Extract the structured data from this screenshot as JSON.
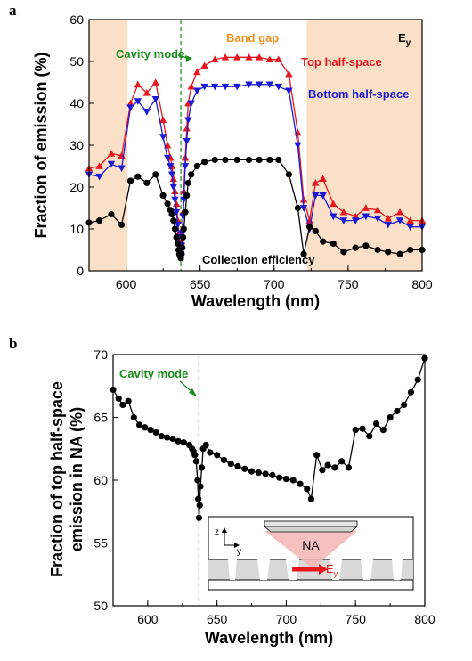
{
  "chart_data": [
    {
      "panel": "a",
      "type": "line",
      "xlabel": "Wavelength (nm)",
      "ylabel": "Fraction of emission (%)",
      "xlim": [
        575,
        800
      ],
      "ylim": [
        0,
        60
      ],
      "xticks": [
        "600",
        "650",
        "700",
        "750",
        "800"
      ],
      "yticks": [
        "0",
        "10",
        "20",
        "30",
        "40",
        "50",
        "60"
      ],
      "polarization_label": "E",
      "polarization_sub": "y",
      "shaded_regions": [
        [
          575,
          601
        ],
        [
          722,
          800
        ]
      ],
      "shade_color": "#fbe0c8",
      "cavity_mode_x": 637,
      "annotations": {
        "cavity_mode": "Cavity mode",
        "band_gap": "Band gap",
        "collection": "Collection efficiency"
      },
      "series": [
        {
          "name": "Top half-space",
          "color": "#e8171e",
          "marker": "triangle-up",
          "x": [
            575,
            582,
            590,
            597,
            603,
            608,
            614,
            620,
            625,
            628,
            630,
            631,
            632,
            633,
            634,
            635,
            635.5,
            636,
            636.5,
            637,
            637.5,
            638,
            638.5,
            639,
            640,
            641,
            642,
            644,
            648,
            653,
            660,
            667,
            675,
            683,
            690,
            697,
            703,
            710,
            716,
            720,
            724,
            728,
            733,
            740,
            747,
            755,
            762,
            770,
            777,
            785,
            792,
            800
          ],
          "y": [
            24.5,
            25,
            28,
            27.5,
            40,
            44.5,
            42.5,
            45,
            36,
            30,
            27,
            25,
            22,
            19,
            16,
            12,
            9,
            7,
            5,
            4.5,
            7,
            10,
            14,
            19,
            27,
            34,
            40,
            44,
            47.5,
            49,
            50.5,
            51,
            51,
            51,
            51,
            50.5,
            50.5,
            47,
            33,
            17,
            12,
            21,
            22,
            16,
            14,
            13,
            15,
            14.5,
            12.5,
            14,
            12,
            12
          ]
        },
        {
          "name": "Bottom half-space",
          "color": "#1a1ad6",
          "marker": "triangle-down",
          "x": [
            575,
            582,
            590,
            597,
            603,
            608,
            614,
            620,
            625,
            628,
            630,
            631,
            632,
            633,
            634,
            635,
            635.5,
            636,
            636.5,
            637,
            637.5,
            638,
            638.5,
            639,
            640,
            641,
            642,
            644,
            648,
            653,
            660,
            667,
            675,
            683,
            690,
            697,
            703,
            710,
            716,
            720,
            724,
            728,
            733,
            740,
            747,
            755,
            762,
            770,
            777,
            785,
            792,
            800
          ],
          "y": [
            23,
            22.5,
            25.5,
            24.5,
            39,
            40.5,
            38,
            41,
            32,
            27,
            25,
            23,
            20,
            17,
            14,
            11,
            8,
            6,
            4.5,
            4,
            6,
            9,
            13,
            17,
            25,
            31,
            36,
            40,
            43,
            44,
            44,
            44,
            44,
            44.5,
            44.5,
            44.5,
            44,
            43,
            30,
            15,
            10,
            18,
            18,
            13,
            12,
            12,
            13,
            12.5,
            11,
            12,
            10.5,
            10.5
          ]
        },
        {
          "name": "Collection efficiency",
          "color": "#000000",
          "marker": "circle",
          "x": [
            575,
            582,
            590,
            597,
            603,
            608,
            614,
            620,
            625,
            628,
            630,
            631,
            632,
            633,
            634,
            635,
            635.5,
            636,
            636.5,
            637,
            637.5,
            638,
            638.5,
            639,
            640,
            641,
            642,
            644,
            648,
            653,
            660,
            667,
            675,
            683,
            690,
            697,
            703,
            710,
            716,
            720,
            724,
            728,
            733,
            740,
            747,
            755,
            762,
            770,
            777,
            785,
            792,
            800
          ],
          "y": [
            11.5,
            12,
            13.5,
            11,
            21.5,
            22.5,
            21,
            23,
            18,
            16,
            14.5,
            13.5,
            12,
            10,
            8,
            6.5,
            5,
            4,
            3.5,
            3,
            4,
            5.5,
            8,
            10,
            14,
            18,
            21,
            23,
            25,
            26,
            26.5,
            26.5,
            26.5,
            26.5,
            26.5,
            26.5,
            26.5,
            23,
            15,
            4,
            10.5,
            9.5,
            7,
            6.5,
            4.5,
            5.5,
            6,
            5,
            4.5,
            4,
            5,
            5
          ]
        }
      ]
    },
    {
      "panel": "b",
      "type": "line",
      "xlabel": "Wavelength (nm)",
      "ylabel_line1": "Fraction of top half-space",
      "ylabel_line2": "emission in NA (%)",
      "xlim": [
        575,
        800
      ],
      "ylim": [
        50,
        70
      ],
      "xticks": [
        "600",
        "650",
        "700",
        "750",
        "800"
      ],
      "yticks": [
        "50",
        "55",
        "60",
        "65",
        "70"
      ],
      "cavity_mode_x": 637,
      "annotations": {
        "cavity_mode": "Cavity mode"
      },
      "inset": {
        "label_na": "NA",
        "label_e": "E",
        "label_e_sub": "y",
        "axis_z": "z",
        "axis_y": "y"
      },
      "series": [
        {
          "name": "",
          "color": "#000000",
          "marker": "circle",
          "x": [
            575,
            579,
            582,
            586,
            590,
            594,
            598,
            602,
            606,
            610,
            614,
            618,
            622,
            626,
            630,
            632,
            633,
            634,
            635,
            636,
            636.5,
            637,
            637.5,
            638,
            639,
            640,
            642,
            645,
            650,
            655,
            660,
            665,
            670,
            675,
            680,
            685,
            690,
            695,
            700,
            705,
            710,
            715,
            718,
            722,
            726,
            730,
            735,
            740,
            745,
            750,
            755,
            760,
            765,
            770,
            775,
            780,
            785,
            790,
            795,
            800
          ],
          "y": [
            67.2,
            66.5,
            66,
            66.3,
            65,
            64.4,
            64.2,
            64,
            63.8,
            63.5,
            63.4,
            63.3,
            63.1,
            63,
            62.8,
            62.5,
            62.3,
            62,
            61.5,
            60,
            58.5,
            57,
            58,
            59.5,
            61,
            62.5,
            62.8,
            62.2,
            62,
            61.6,
            61.3,
            61.1,
            60.9,
            60.7,
            60.6,
            60.5,
            60.4,
            60.2,
            60.1,
            60,
            59.7,
            59.3,
            58.5,
            62,
            60.8,
            61.2,
            61,
            61.5,
            61,
            64,
            64.1,
            63.5,
            64.5,
            64,
            65,
            65.5,
            66,
            67,
            68,
            69.7
          ]
        }
      ]
    }
  ]
}
